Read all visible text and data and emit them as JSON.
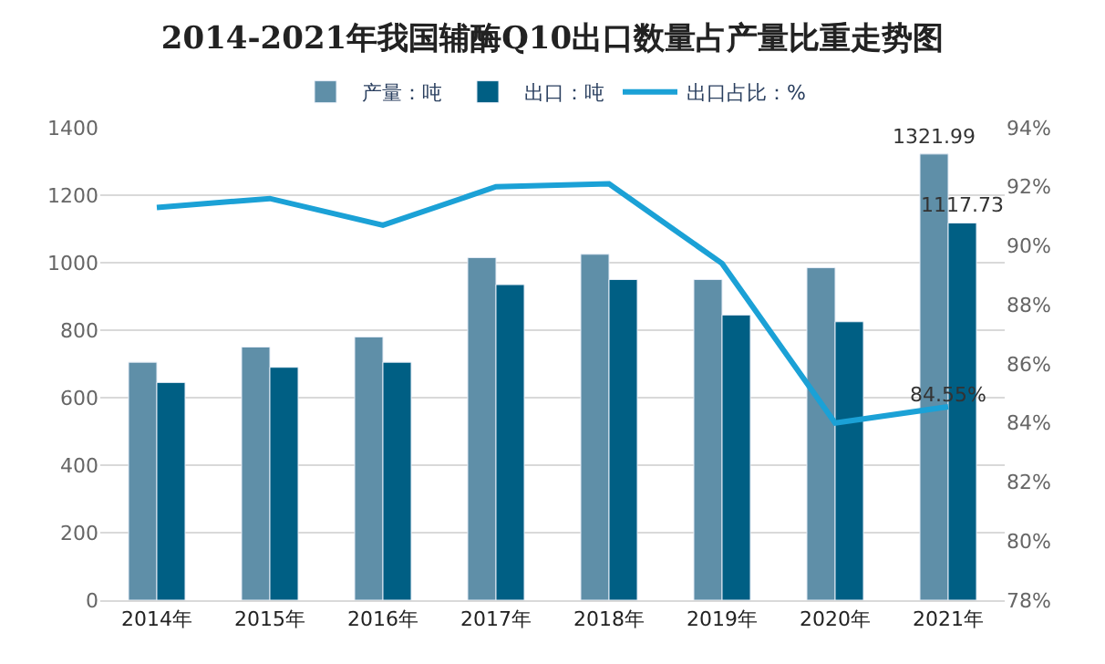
{
  "chart_data": {
    "type": "bar",
    "title": "2014-2021年我国辅酶Q10出口数量占产量比重走势图",
    "categories": [
      "2014年",
      "2015年",
      "2016年",
      "2017年",
      "2018年",
      "2019年",
      "2020年",
      "2021年"
    ],
    "series": [
      {
        "name": "产量：吨",
        "color": "#5f8fa8",
        "values": [
          705,
          750,
          780,
          1015,
          1025,
          950,
          985,
          1321.99
        ],
        "value_labels": [
          null,
          null,
          null,
          null,
          null,
          null,
          null,
          "1321.99"
        ]
      },
      {
        "name": "出口：吨",
        "color": "#005f84",
        "values": [
          645,
          690,
          705,
          935,
          950,
          845,
          825,
          1117.73
        ],
        "value_labels": [
          null,
          null,
          null,
          null,
          null,
          null,
          null,
          "1117.73"
        ]
      },
      {
        "name": "出口占比：%",
        "type": "line",
        "axis": "y2",
        "color": "#1ba1d6",
        "values": [
          91.3,
          91.6,
          90.7,
          92.0,
          92.1,
          89.4,
          84.0,
          84.55
        ],
        "value_labels": [
          null,
          null,
          null,
          null,
          null,
          null,
          null,
          "84.55%"
        ]
      }
    ],
    "ylim": [
      0,
      1400
    ],
    "yticks": [
      0,
      200,
      400,
      600,
      800,
      1000,
      1200,
      1400
    ],
    "y2lim": [
      78,
      94
    ],
    "y2ticks": [
      {
        "value": 78,
        "label": "78%"
      },
      {
        "value": 80,
        "label": "80%"
      },
      {
        "value": 82,
        "label": "82%"
      },
      {
        "value": 84,
        "label": "84%"
      },
      {
        "value": 86,
        "label": "86%"
      },
      {
        "value": 88,
        "label": "88%"
      },
      {
        "value": 90,
        "label": "90%"
      },
      {
        "value": 92,
        "label": "92%"
      },
      {
        "value": 94,
        "label": "94%"
      }
    ],
    "grid": "y",
    "legend": "top",
    "marker": "none",
    "line_style": "solid"
  }
}
